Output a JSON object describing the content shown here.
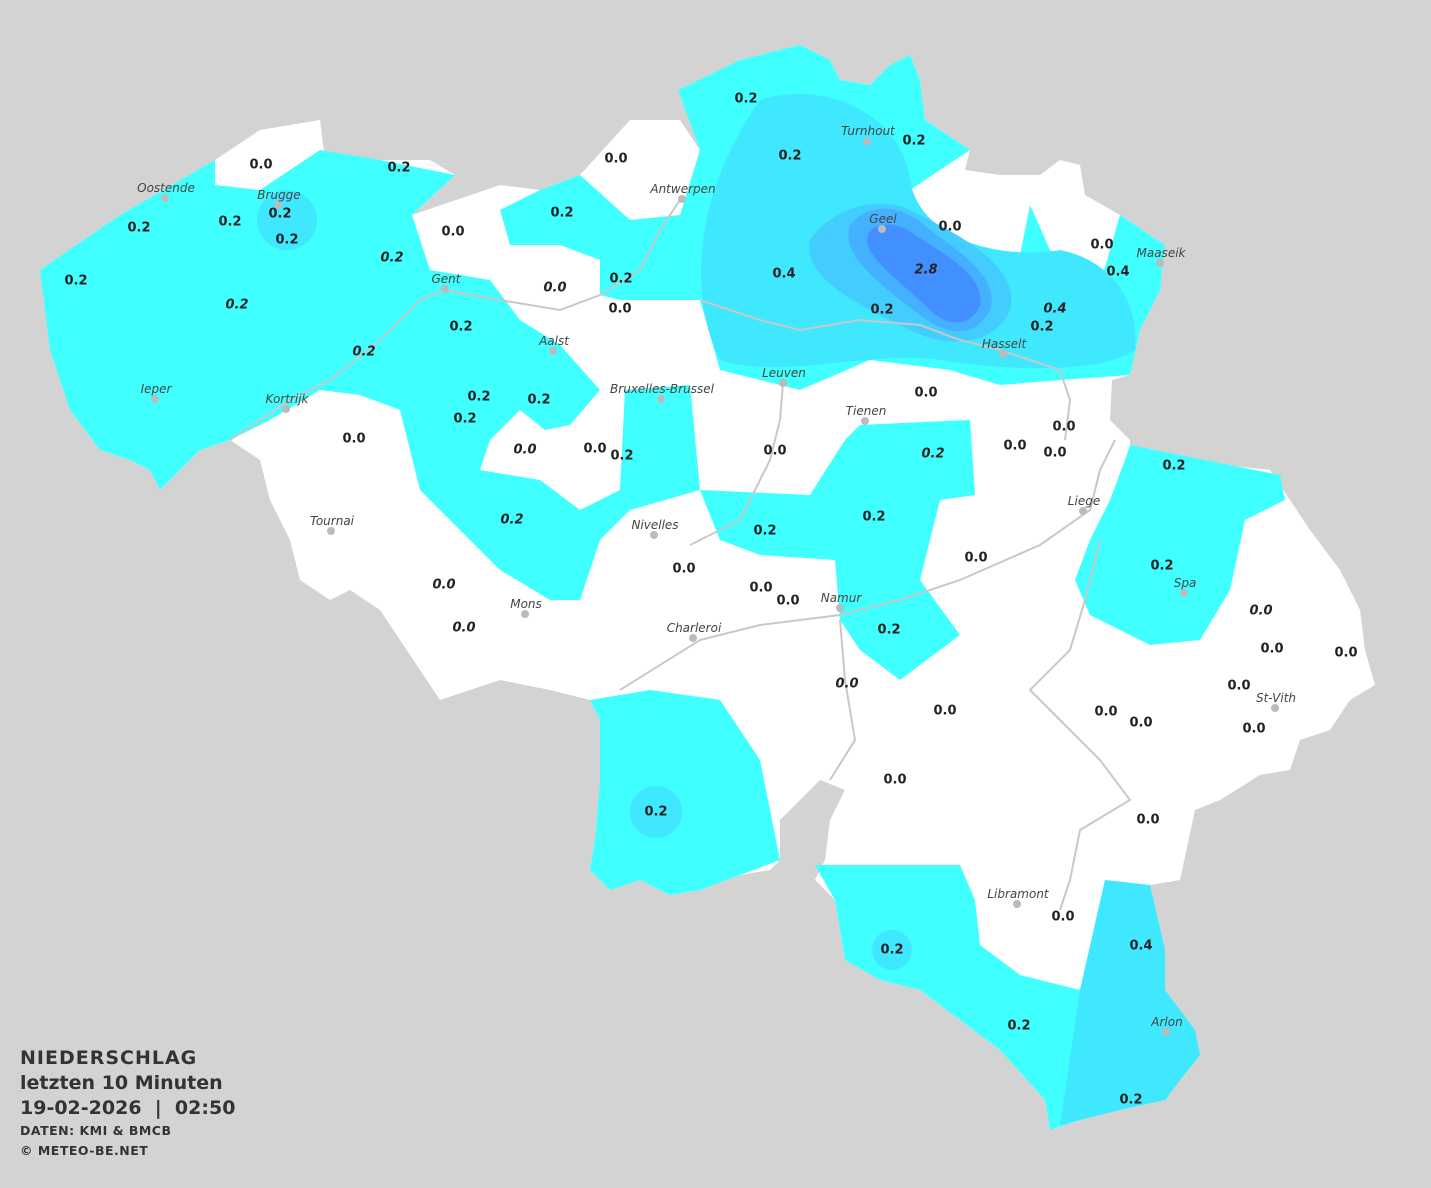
{
  "legend": {
    "title": "NIEDERSCHLAG",
    "period": "letzten 10 Minuten",
    "datetime": "19-02-2026  |  02:50",
    "source": "DATEN: KMI & BMCB",
    "copyright": "© METEO-BE.NET"
  },
  "colors": {
    "background": "#d3d3d3",
    "land": "#ffffff",
    "precip_0_2": "#40ffff",
    "precip_0_4": "#40e8ff",
    "precip_0_8": "#43cdff",
    "precip_1_5": "#45b0ff",
    "precip_2_5": "#4290ff",
    "rivers": "#c8c8c8"
  },
  "cities": [
    "Oostende",
    "Brugge",
    "Antwerpen",
    "Turnhout",
    "Geel",
    "Maaseik",
    "Gent",
    "Aalst",
    "Hasselt",
    "Leuven",
    "Bruxelles-Brussel",
    "Ieper",
    "Kortrijk",
    "Tienen",
    "Liege",
    "Tournai",
    "Nivelles",
    "Spa",
    "Mons",
    "Namur",
    "Charleroi",
    "St-Vith",
    "Libramont",
    "Arlon"
  ],
  "station_values": [
    "0.0",
    "0.2",
    "0.2",
    "0.2",
    "0.2",
    "0.2",
    "0.2",
    "0.2",
    "0.2",
    "0.0",
    "0.0",
    "0.2",
    "0.2",
    "0.2",
    "0.2",
    "0.0",
    "0.0",
    "0.4",
    "0.4",
    "2.8",
    "0.2",
    "0.0",
    "0.0",
    "0.2",
    "0.2",
    "0.2",
    "0.4",
    "0.2",
    "0.2",
    "0.2",
    "0.2",
    "0.0",
    "0.0",
    "0.0",
    "0.2",
    "0.0",
    "0.0",
    "0.2",
    "0.0",
    "0.0",
    "0.0",
    "0.2",
    "0.2",
    "0.2",
    "0.2",
    "0.0",
    "0.2",
    "0.0",
    "0.0",
    "0.0",
    "0.0",
    "0.0",
    "0.2",
    "0.0",
    "0.0",
    "0.0",
    "0.0",
    "0.0",
    "0.0",
    "0.0",
    "0.0",
    "0.0",
    "0.0",
    "0.2",
    "0.0",
    "0.0",
    "0.2",
    "0.4",
    "0.2",
    "0.2"
  ],
  "unit": "mm"
}
